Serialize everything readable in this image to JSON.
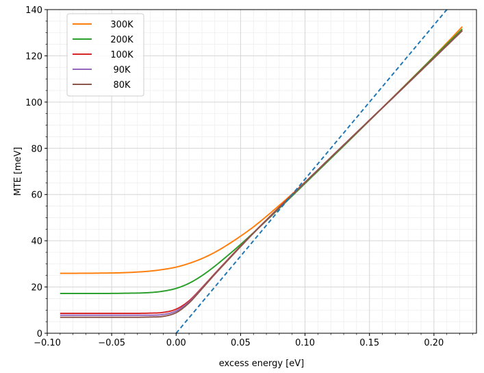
{
  "chart_data": {
    "type": "line",
    "xlabel": "excess energy [eV]",
    "ylabel": "MTE [meV]",
    "xlim": [
      -0.1,
      0.233
    ],
    "ylim": [
      0,
      140
    ],
    "xticks": [
      -0.1,
      -0.05,
      0.0,
      0.05,
      0.1,
      0.15,
      0.2
    ],
    "xtick_labels": [
      "−0.10",
      "−0.05",
      "0.00",
      "0.05",
      "0.10",
      "0.15",
      "0.20"
    ],
    "yticks": [
      0,
      20,
      40,
      60,
      80,
      100,
      120,
      140
    ],
    "ytick_labels": [
      "0",
      "20",
      "40",
      "60",
      "80",
      "100",
      "120",
      "140"
    ],
    "grid": "major and minor",
    "legend_position": "top-left",
    "series": [
      {
        "name": "300K",
        "color": "#ff7f0e",
        "x": [
          -0.09,
          -0.06,
          -0.04,
          -0.02,
          -0.01,
          0.0,
          0.01,
          0.02,
          0.03,
          0.04,
          0.05,
          0.06,
          0.08,
          0.1,
          0.12,
          0.15,
          0.18,
          0.2,
          0.222
        ],
        "y": [
          25.9,
          26.0,
          26.2,
          26.9,
          27.6,
          28.6,
          30.2,
          32.3,
          35.0,
          38.3,
          42.0,
          46.0,
          55.3,
          65.3,
          75.7,
          92.0,
          108.6,
          119.8,
          132.6
        ]
      },
      {
        "name": "200K",
        "color": "#2ca02c",
        "x": [
          -0.09,
          -0.06,
          -0.04,
          -0.02,
          -0.01,
          0.0,
          0.01,
          0.02,
          0.03,
          0.04,
          0.05,
          0.06,
          0.08,
          0.1,
          0.12,
          0.15,
          0.18,
          0.2,
          0.222
        ],
        "y": [
          17.2,
          17.2,
          17.3,
          17.6,
          18.2,
          19.4,
          21.6,
          24.9,
          29.0,
          33.6,
          38.4,
          43.5,
          54.0,
          64.8,
          75.6,
          92.0,
          108.5,
          119.6,
          131.6
        ]
      },
      {
        "name": "100K",
        "color": "#d62728",
        "x": [
          -0.09,
          -0.06,
          -0.04,
          -0.02,
          -0.01,
          0.0,
          0.01,
          0.02,
          0.03,
          0.04,
          0.05,
          0.06,
          0.08,
          0.1,
          0.12,
          0.15,
          0.18,
          0.2,
          0.222
        ],
        "y": [
          8.6,
          8.6,
          8.6,
          8.7,
          9.0,
          10.4,
          14.0,
          19.7,
          25.8,
          31.8,
          37.7,
          43.4,
          54.5,
          65.3,
          76.1,
          92.2,
          108.3,
          119.1,
          131.0
        ]
      },
      {
        "name": "90K",
        "color": "#9467bd",
        "x": [
          -0.09,
          -0.06,
          -0.04,
          -0.02,
          -0.01,
          0.0,
          0.01,
          0.02,
          0.03,
          0.04,
          0.05,
          0.06,
          0.08,
          0.1,
          0.12,
          0.15,
          0.18,
          0.2,
          0.222
        ],
        "y": [
          7.8,
          7.8,
          7.8,
          7.8,
          8.1,
          9.6,
          13.5,
          19.4,
          25.6,
          31.6,
          37.5,
          43.3,
          54.3,
          65.2,
          76.0,
          92.1,
          108.2,
          119.0,
          130.9
        ]
      },
      {
        "name": "80K",
        "color": "#8c564b",
        "x": [
          -0.09,
          -0.06,
          -0.04,
          -0.02,
          -0.01,
          0.0,
          0.01,
          0.02,
          0.03,
          0.04,
          0.05,
          0.06,
          0.08,
          0.1,
          0.12,
          0.15,
          0.18,
          0.2,
          0.222
        ],
        "y": [
          6.9,
          6.9,
          6.9,
          7.0,
          7.3,
          8.9,
          13.1,
          19.2,
          25.5,
          31.5,
          37.5,
          43.3,
          54.3,
          65.2,
          76.0,
          92.1,
          108.2,
          119.0,
          130.9
        ]
      },
      {
        "name": "",
        "color": "#1f77b4",
        "style": "dashed",
        "x": [
          0.0,
          0.225
        ],
        "y": [
          0.0,
          150.0
        ]
      }
    ]
  }
}
